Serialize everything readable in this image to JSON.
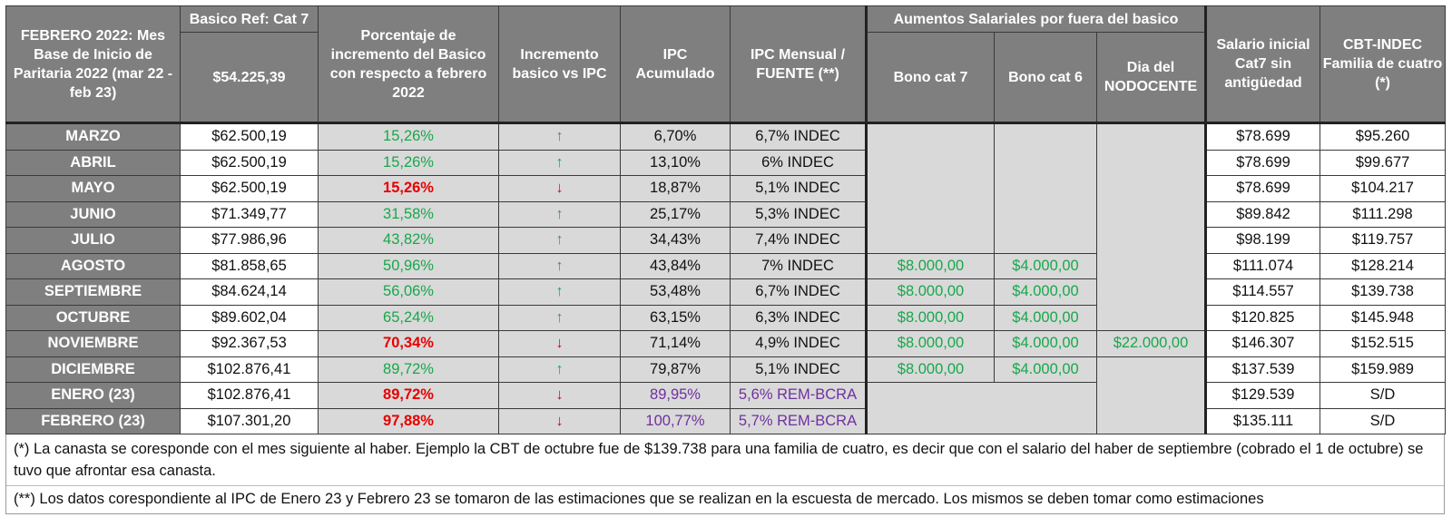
{
  "header": {
    "col1": "FEBRERO 2022: Mes Base de Inicio de Paritaria 2022 (mar 22 - feb 23)",
    "basico_ref_label": "Basico Ref: Cat 7",
    "basico_ref_value": "$54.225,39",
    "porcentaje": "Porcentaje de incremento del Basico con respecto a febrero 2022",
    "incremento": "Incremento basico vs IPC",
    "ipc_acum": "IPC Acumulado",
    "ipc_mensual": "IPC Mensual / FUENTE (**)",
    "aumentos": "Aumentos Salariales por fuera del basico",
    "bono7": "Bono cat 7",
    "bono6": "Bono cat 6",
    "dia": "Dia del NODOCENTE",
    "salario": "Salario inicial Cat7 sin antigüedad",
    "cbt": "CBT-INDEC Familia de cuatro (*)"
  },
  "rows": [
    {
      "mes": "MARZO",
      "basico": "$62.500,19",
      "pct": "15,26%",
      "pct_color": "green",
      "arrow": "↑",
      "ipc_acum": "6,70%",
      "ipc_mens": "6,7% INDEC",
      "purple": false,
      "bono7": "",
      "bono6": "",
      "dia": "",
      "salario": "$78.699",
      "cbt": "$95.260"
    },
    {
      "mes": "ABRIL",
      "basico": "$62.500,19",
      "pct": "15,26%",
      "pct_color": "green",
      "arrow": "↑",
      "ipc_acum": "13,10%",
      "ipc_mens": "6% INDEC",
      "purple": false,
      "bono7": "",
      "bono6": "",
      "dia": "",
      "salario": "$78.699",
      "cbt": "$99.677"
    },
    {
      "mes": "MAYO",
      "basico": "$62.500,19",
      "pct": "15,26%",
      "pct_color": "red",
      "arrow": "↓",
      "ipc_acum": "18,87%",
      "ipc_mens": "5,1% INDEC",
      "purple": false,
      "bono7": "",
      "bono6": "",
      "dia": "",
      "salario": "$78.699",
      "cbt": "$104.217"
    },
    {
      "mes": "JUNIO",
      "basico": "$71.349,77",
      "pct": "31,58%",
      "pct_color": "green",
      "arrow": "↑",
      "ipc_acum": "25,17%",
      "ipc_mens": "5,3% INDEC",
      "purple": false,
      "bono7": "",
      "bono6": "",
      "dia": "",
      "salario": "$89.842",
      "cbt": "$111.298"
    },
    {
      "mes": "JULIO",
      "basico": "$77.986,96",
      "pct": "43,82%",
      "pct_color": "green",
      "arrow": "↑",
      "ipc_acum": "34,43%",
      "ipc_mens": "7,4% INDEC",
      "purple": false,
      "bono7": "",
      "bono6": "",
      "dia": "",
      "salario": "$98.199",
      "cbt": "$119.757"
    },
    {
      "mes": "AGOSTO",
      "basico": "$81.858,65",
      "pct": "50,96%",
      "pct_color": "green",
      "arrow": "↑",
      "ipc_acum": "43,84%",
      "ipc_mens": "7% INDEC",
      "purple": false,
      "bono7": "$8.000,00",
      "bono6": "$4.000,00",
      "dia": "",
      "salario": "$111.074",
      "cbt": "$128.214"
    },
    {
      "mes": "SEPTIEMBRE",
      "basico": "$84.624,14",
      "pct": "56,06%",
      "pct_color": "green",
      "arrow": "↑",
      "ipc_acum": "53,48%",
      "ipc_mens": "6,7% INDEC",
      "purple": false,
      "bono7": "$8.000,00",
      "bono6": "$4.000,00",
      "dia": "",
      "salario": "$114.557",
      "cbt": "$139.738"
    },
    {
      "mes": "OCTUBRE",
      "basico": "$89.602,04",
      "pct": "65,24%",
      "pct_color": "green",
      "arrow": "↑",
      "ipc_acum": "63,15%",
      "ipc_mens": "6,3% INDEC",
      "purple": false,
      "bono7": "$8.000,00",
      "bono6": "$4.000,00",
      "dia": "",
      "salario": "$120.825",
      "cbt": "$145.948"
    },
    {
      "mes": "NOVIEMBRE",
      "basico": "$92.367,53",
      "pct": "70,34%",
      "pct_color": "red",
      "arrow": "↓",
      "ipc_acum": "71,14%",
      "ipc_mens": "4,9% INDEC",
      "purple": false,
      "bono7": "$8.000,00",
      "bono6": "$4.000,00",
      "dia": "$22.000,00",
      "salario": "$146.307",
      "cbt": "$152.515"
    },
    {
      "mes": "DICIEMBRE",
      "basico": "$102.876,41",
      "pct": "89,72%",
      "pct_color": "green",
      "arrow": "↑",
      "ipc_acum": "79,87%",
      "ipc_mens": "5,1% INDEC",
      "purple": false,
      "bono7": "$8.000,00",
      "bono6": "$4.000,00",
      "dia": "",
      "salario": "$137.539",
      "cbt": "$159.989"
    },
    {
      "mes": "ENERO (23)",
      "basico": "$102.876,41",
      "pct": "89,72%",
      "pct_color": "red",
      "arrow": "↓",
      "ipc_acum": "89,95%",
      "ipc_mens": "5,6% REM-BCRA",
      "purple": true,
      "bono7": "",
      "bono6": "",
      "dia": "",
      "salario": "$129.539",
      "cbt": "S/D"
    },
    {
      "mes": "FEBRERO (23)",
      "basico": "$107.301,20",
      "pct": "97,88%",
      "pct_color": "red",
      "arrow": "↓",
      "ipc_acum": "100,77%",
      "ipc_mens": "5,7% REM-BCRA",
      "purple": true,
      "bono7": "",
      "bono6": "",
      "dia": "",
      "salario": "$135.111",
      "cbt": "S/D"
    }
  ],
  "notes": {
    "note1": "(*) La canasta se coresponde con el mes siguiente al haber. Ejemplo la CBT de octubre fue de $139.738 para una familia de cuatro, es decir que con el salario del haber de septiembre (cobrado el 1 de octubre) se tuvo que afrontar esa canasta.",
    "note2": "(**) Los datos corespondiente al IPC de Enero 23 y Febrero 23 se tomaron de las estimaciones que se realizan en la escuesta de mercado. Los mismos se deben tomar como estimaciones"
  },
  "colors": {
    "green": "#17a84a",
    "red": "#e60000",
    "purple": "#7030a0",
    "header_bg": "#7f7f7f",
    "cell_bg": "#d9d9d9"
  }
}
